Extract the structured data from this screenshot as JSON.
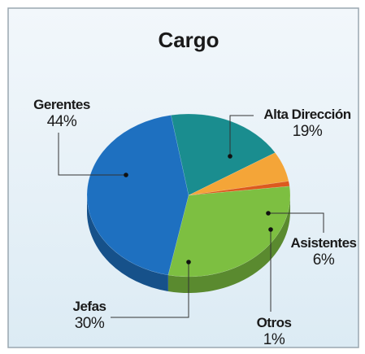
{
  "chart_data": {
    "type": "pie",
    "title": "Cargo",
    "categories": [
      "Alta Dirección",
      "Asistentes",
      "Otros",
      "Jefas",
      "Gerentes"
    ],
    "values": [
      19,
      6,
      1,
      30,
      44
    ],
    "value_labels": [
      "19%",
      "6%",
      "1%",
      "30%",
      "44%"
    ],
    "colors": [
      "#1a8d8f",
      "#f4a538",
      "#dc5a1e",
      "#7dbf41",
      "#1e70c0"
    ]
  }
}
